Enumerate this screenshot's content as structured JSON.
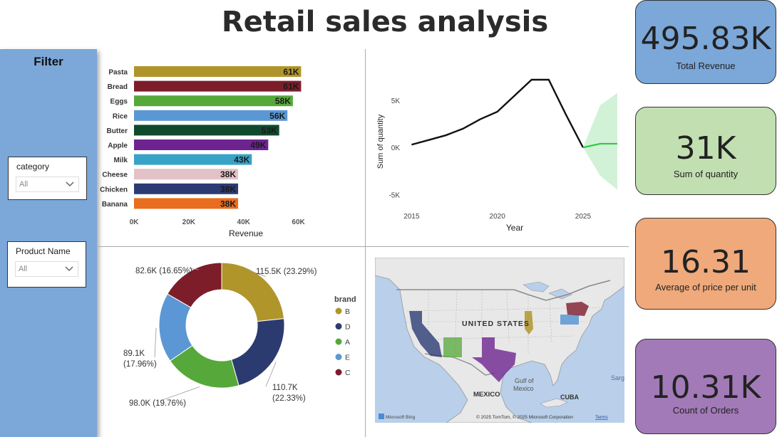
{
  "title": "Retail sales analysis",
  "filter": {
    "title": "Filter",
    "slicers": [
      {
        "label": "category",
        "value": "All"
      },
      {
        "label": "Product Name",
        "value": "All"
      }
    ]
  },
  "kpis": [
    {
      "value": "495.83K",
      "label": "Total Revenue",
      "color": "#7ba7d9"
    },
    {
      "value": "31K",
      "label": "Sum of quantity",
      "color": "#c2dfb1"
    },
    {
      "value": "16.31",
      "label": "Average of price per unit",
      "color": "#efa97a"
    },
    {
      "value": "10.31K",
      "label": "Count of Orders",
      "color": "#a27ab8"
    }
  ],
  "chart_data": [
    {
      "type": "bar",
      "orientation": "horizontal",
      "categories": [
        "Pasta",
        "Bread",
        "Eggs",
        "Rice",
        "Butter",
        "Apple",
        "Milk",
        "Cheese",
        "Chicken",
        "Banana"
      ],
      "values": [
        61,
        61,
        58,
        56,
        53,
        49,
        43,
        38,
        38,
        38
      ],
      "data_labels": [
        "61K",
        "61K",
        "58K",
        "56K",
        "53K",
        "49K",
        "43K",
        "38K",
        "38K",
        "38K"
      ],
      "colors": [
        "#b0952a",
        "#7d1d2a",
        "#56a83a",
        "#5b97d4",
        "#0f4a2c",
        "#6d2490",
        "#38a3c6",
        "#e3c2c7",
        "#2c3b73",
        "#e86d1f"
      ],
      "xlabel": "Revenue",
      "xticks": [
        "0K",
        "20K",
        "40K",
        "60K"
      ],
      "xlim": [
        0,
        70
      ]
    },
    {
      "type": "line",
      "x": [
        2015,
        2016,
        2017,
        2018,
        2019,
        2020,
        2021,
        2022,
        2023,
        2024,
        2025
      ],
      "y": [
        0.3,
        0.8,
        1.3,
        2.0,
        3.0,
        3.8,
        5.5,
        7.2,
        7.2,
        3.5,
        0.0
      ],
      "forecast": {
        "x": [
          2025,
          2026,
          2027
        ],
        "y": [
          0.0,
          0.4,
          0.4
        ],
        "upper": [
          0.0,
          4.5,
          5.8
        ],
        "lower": [
          0.0,
          -3.0,
          -4.5
        ]
      },
      "xlabel": "Year",
      "ylabel": "Sum of quantity",
      "xticks": [
        "2015",
        "2020",
        "2025"
      ],
      "yticks": [
        "5K",
        "0K",
        "-5K"
      ],
      "xlim": [
        2014.9,
        2027
      ],
      "ylim": [
        -5.5,
        7.2
      ]
    },
    {
      "type": "pie",
      "donut": true,
      "legend_title": "brand",
      "slices": [
        {
          "name": "B",
          "value": 115.5,
          "label": "115.5K (23.29%)",
          "color": "#b0952a"
        },
        {
          "name": "D",
          "value": 110.7,
          "label": "110.7K (22.33%)",
          "color": "#2c3b6f"
        },
        {
          "name": "A",
          "value": 98.0,
          "label": "98.0K (19.76%)",
          "color": "#56a83a"
        },
        {
          "name": "E",
          "value": 89.1,
          "label": "89.1K (17.96%)",
          "color": "#5b97d4"
        },
        {
          "name": "C",
          "value": 82.6,
          "label": "82.6K (16.65%)",
          "color": "#7d1d2a"
        }
      ]
    }
  ],
  "map": {
    "labels": [
      "UNITED STATES",
      "Gulf of",
      "Mexico",
      "MEXICO",
      "CUBA",
      "Sarg"
    ],
    "credits": "© 2025 TomTom, © 2025 Microsoft Corporation",
    "terms": "Terms",
    "logo": "Microsoft Bing"
  }
}
